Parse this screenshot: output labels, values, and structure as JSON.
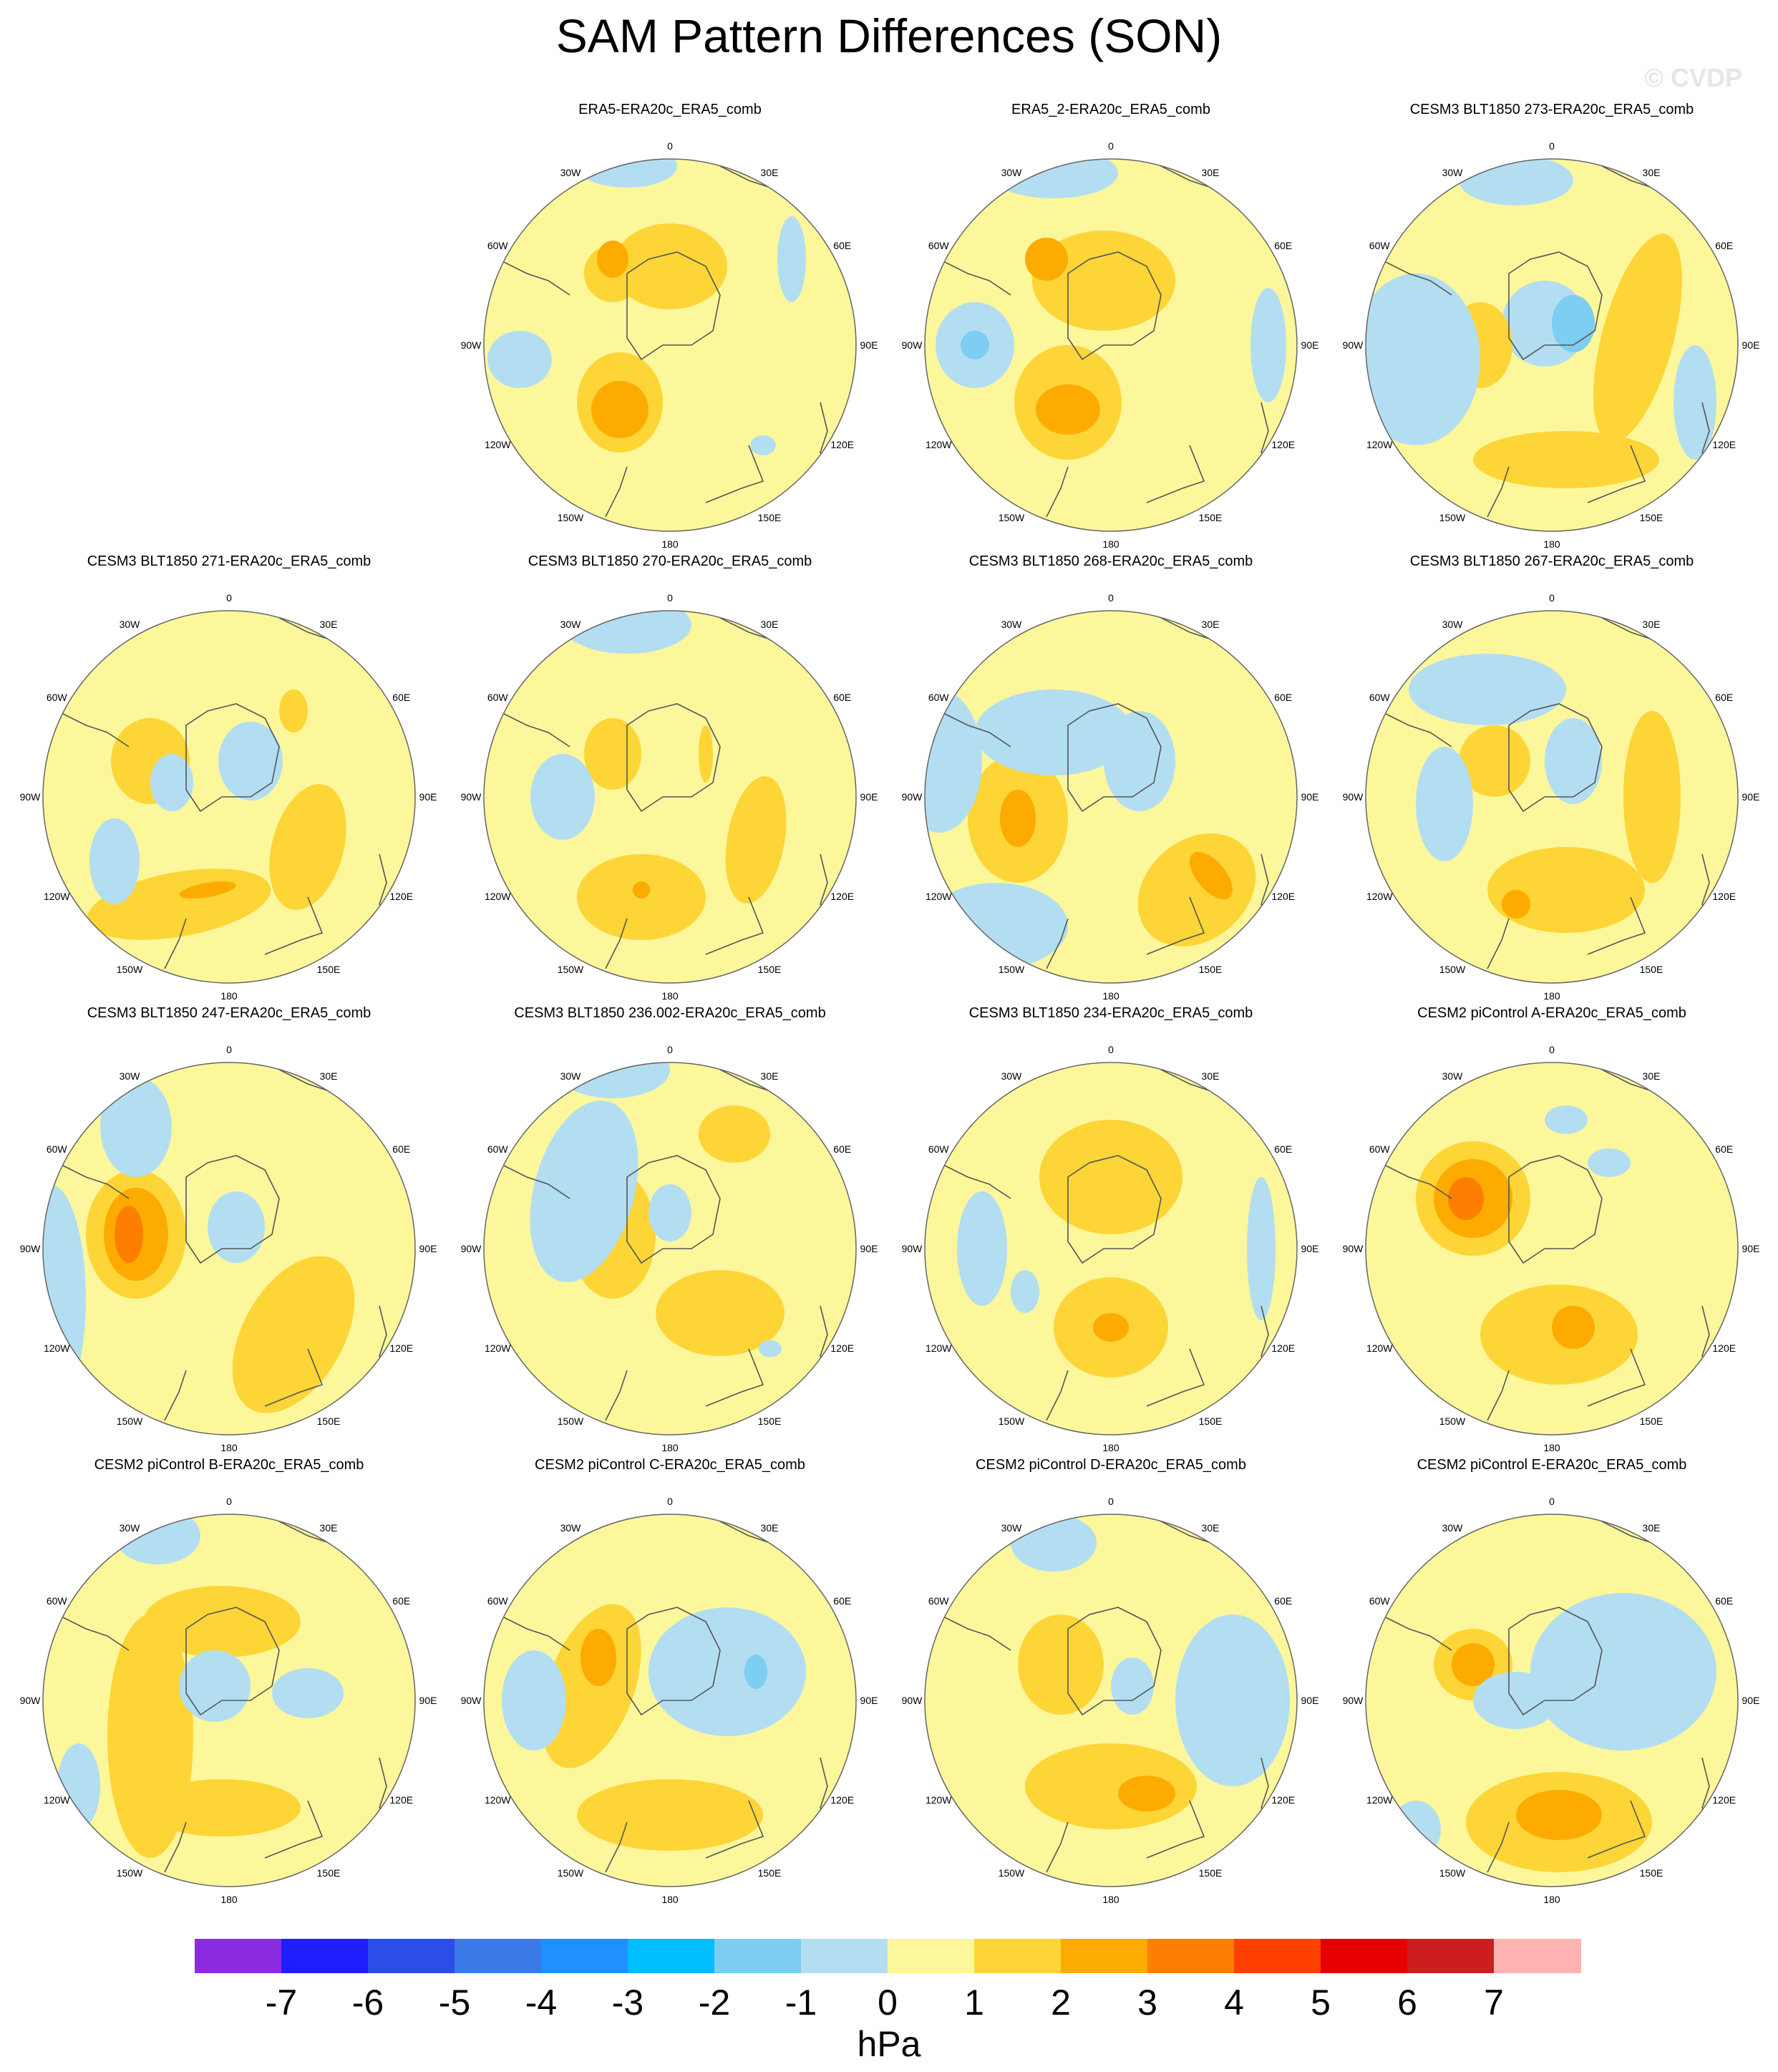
{
  "title": "SAM Pattern Differences (SON)",
  "watermark": "© CVDP",
  "lon_labels": {
    "l0": "0",
    "l30e": "30E",
    "l60e": "60E",
    "l90e": "90E",
    "l120e": "120E",
    "l150e": "150E",
    "l180": "180",
    "l150w": "150W",
    "l120w": "120W",
    "l90w": "90W",
    "l60w": "60W",
    "l30w": "30W"
  },
  "panels": [
    {
      "title": "ERA5-ERA20c_ERA5_comb"
    },
    {
      "title": "ERA5_2-ERA20c_ERA5_comb"
    },
    {
      "title": "CESM3 BLT1850 273-ERA20c_ERA5_comb"
    },
    {
      "title": "CESM3 BLT1850 271-ERA20c_ERA5_comb"
    },
    {
      "title": "CESM3 BLT1850 270-ERA20c_ERA5_comb"
    },
    {
      "title": "CESM3 BLT1850 268-ERA20c_ERA5_comb"
    },
    {
      "title": "CESM3 BLT1850 267-ERA20c_ERA5_comb"
    },
    {
      "title": "CESM3 BLT1850 247-ERA20c_ERA5_comb"
    },
    {
      "title": "CESM3 BLT1850 236.002-ERA20c_ERA5_comb"
    },
    {
      "title": "CESM3 BLT1850 234-ERA20c_ERA5_comb"
    },
    {
      "title": "CESM2 piControl A-ERA20c_ERA5_comb"
    },
    {
      "title": "CESM2 piControl B-ERA20c_ERA5_comb"
    },
    {
      "title": "CESM2 piControl C-ERA20c_ERA5_comb"
    },
    {
      "title": "CESM2 piControl D-ERA20c_ERA5_comb"
    },
    {
      "title": "CESM2 piControl E-ERA20c_ERA5_comb"
    }
  ],
  "colorbar": {
    "unit": "hPa",
    "labels": [
      "-7",
      "-6",
      "-5",
      "-4",
      "-3",
      "-2",
      "-1",
      "0",
      "1",
      "2",
      "3",
      "4",
      "5",
      "6",
      "7"
    ],
    "colors": [
      "#8a2be2",
      "#1e1eff",
      "#2c4ee8",
      "#3a7ae8",
      "#1e90ff",
      "#00bfff",
      "#7ecdf2",
      "#b3def2",
      "#fdf79c",
      "#fdd536",
      "#fdab00",
      "#fd7e00",
      "#ff4000",
      "#e60000",
      "#cc1e1e",
      "#ffb3b3"
    ]
  },
  "palette": {
    "neutral": "#fdf79c",
    "pos1": "#fdd536",
    "pos2": "#fdab00",
    "pos3": "#fd7e00",
    "pos4": "#ff4000",
    "neg1": "#b3def2",
    "neg2": "#7ecdf2",
    "neg3": "#00bfff",
    "coast": "#555555"
  }
}
